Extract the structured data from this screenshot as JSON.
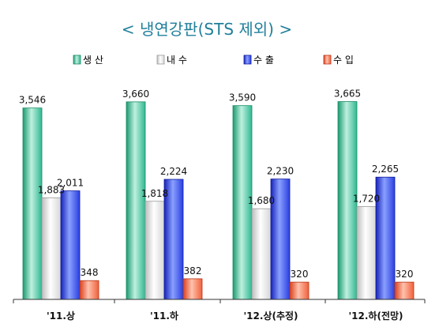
{
  "chart_data": {
    "type": "bar",
    "title": "< 냉연강판(STS 제외) >",
    "categories": [
      "'11.상",
      "'11.하",
      "'12.상(추정)",
      "'12.하(전망)"
    ],
    "series": [
      {
        "name": "생 산",
        "color": "#2fb890",
        "values": [
          3546,
          3660,
          3590,
          3665
        ]
      },
      {
        "name": "내 수",
        "color": "#e6e6e6",
        "values": [
          1883,
          1818,
          1680,
          1720
        ]
      },
      {
        "name": "수 출",
        "color": "#2a3fe0",
        "values": [
          2011,
          2224,
          2230,
          2265
        ]
      },
      {
        "name": "수 입",
        "color": "#f0603a",
        "values": [
          348,
          382,
          320,
          320
        ]
      }
    ],
    "value_labels": [
      [
        "3,546",
        "1,883",
        "2,011",
        "348"
      ],
      [
        "3,660",
        "1,818",
        "2,224",
        "382"
      ],
      [
        "3,590",
        "1,680",
        "2,230",
        "320"
      ],
      [
        "3,665",
        "1,720",
        "2,265",
        "320"
      ]
    ],
    "ylim": [
      0,
      4200
    ],
    "grid": false,
    "legend_position": "top"
  }
}
